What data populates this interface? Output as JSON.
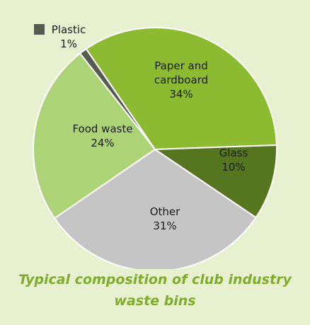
{
  "chart_data": {
    "type": "pie",
    "title": "",
    "caption_lines": [
      "Typical composition of club industry",
      "waste bins"
    ],
    "slices": [
      {
        "name": "Plastic",
        "value": 1,
        "label_lines": [
          "Plastic",
          "1%"
        ],
        "color": "#555b4f",
        "legend_marker": true
      },
      {
        "name": "Paper and cardboard",
        "value": 34,
        "label_lines": [
          "Paper and",
          "cardboard",
          "34%"
        ],
        "color": "#8cba31"
      },
      {
        "name": "Glass",
        "value": 10,
        "label_lines": [
          "Glass",
          "10%"
        ],
        "color": "#55751e"
      },
      {
        "name": "Other",
        "value": 31,
        "label_lines": [
          "Other",
          "31%"
        ],
        "color": "#c5c5c6"
      },
      {
        "name": "Food waste",
        "value": 24,
        "label_lines": [
          "Food waste",
          "24%"
        ],
        "color": "#acd476"
      }
    ],
    "start_angle_deg": -38,
    "clockwise": true,
    "legend": "label on chart"
  }
}
